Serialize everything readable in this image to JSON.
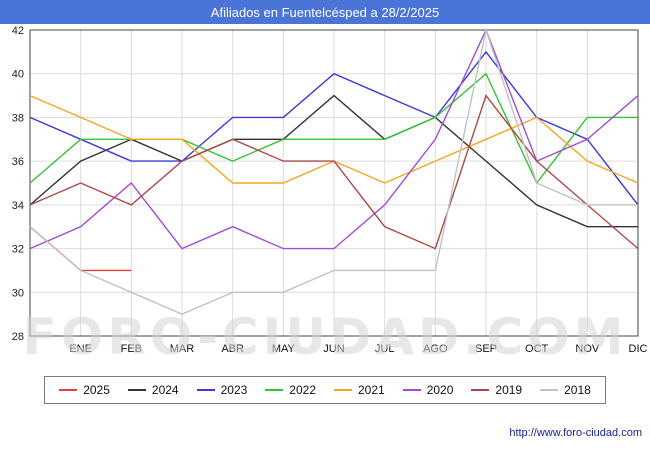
{
  "header": {
    "title": "Afiliados en Fuentelcésped a 28/2/2025"
  },
  "watermark": "FORO-CIUDAD.COM",
  "footer": {
    "url": "http://www.foro-ciudad.com"
  },
  "colors": {
    "header_bg": "#4b74d8",
    "header_text": "#ffffff",
    "grid": "#dcdcdc",
    "axis": "#444444",
    "watermark": "#d4d4d4"
  },
  "chart_data": {
    "type": "line",
    "title": "Afiliados en Fuentelcésped a 28/2/2025",
    "xlabel": "",
    "ylabel": "",
    "categories": [
      "ENE",
      "FEB",
      "MAR",
      "ABR",
      "MAY",
      "JUN",
      "JUL",
      "AGO",
      "SEP",
      "OCT",
      "NOV",
      "DIC"
    ],
    "ylim": [
      28,
      42
    ],
    "yticks": [
      28,
      30,
      32,
      34,
      36,
      38,
      40,
      42
    ],
    "grid": true,
    "legend_position": "bottom",
    "lead_point_at_left_edge": true,
    "series": [
      {
        "name": "2025",
        "color": "#e34234",
        "start": 33,
        "values": [
          31,
          31,
          null,
          null,
          null,
          null,
          null,
          null,
          null,
          null,
          null,
          null
        ]
      },
      {
        "name": "2024",
        "color": "#333333",
        "start": 34,
        "values": [
          36,
          37,
          36,
          37,
          37,
          39,
          37,
          38,
          36,
          34,
          33,
          33
        ]
      },
      {
        "name": "2023",
        "color": "#3a3adf",
        "start": 38,
        "values": [
          37,
          36,
          36,
          38,
          38,
          40,
          39,
          38,
          41,
          38,
          37,
          34
        ]
      },
      {
        "name": "2022",
        "color": "#35c435",
        "start": 35,
        "values": [
          37,
          37,
          37,
          36,
          37,
          37,
          37,
          38,
          40,
          35,
          38,
          38
        ]
      },
      {
        "name": "2021",
        "color": "#f5a623",
        "start": 39,
        "values": [
          38,
          37,
          37,
          35,
          35,
          36,
          35,
          36,
          37,
          38,
          36,
          35
        ]
      },
      {
        "name": "2020",
        "color": "#a24bd8",
        "start": 32,
        "values": [
          33,
          35,
          32,
          33,
          32,
          32,
          34,
          37,
          42,
          36,
          37,
          39
        ]
      },
      {
        "name": "2019",
        "color": "#b04848",
        "start": 34,
        "values": [
          35,
          34,
          36,
          37,
          36,
          36,
          33,
          32,
          39,
          36,
          34,
          32
        ]
      },
      {
        "name": "2018",
        "color": "#c2c2c2",
        "start": 33,
        "values": [
          31,
          30,
          29,
          30,
          30,
          31,
          31,
          31,
          42,
          35,
          34,
          34
        ]
      }
    ]
  }
}
